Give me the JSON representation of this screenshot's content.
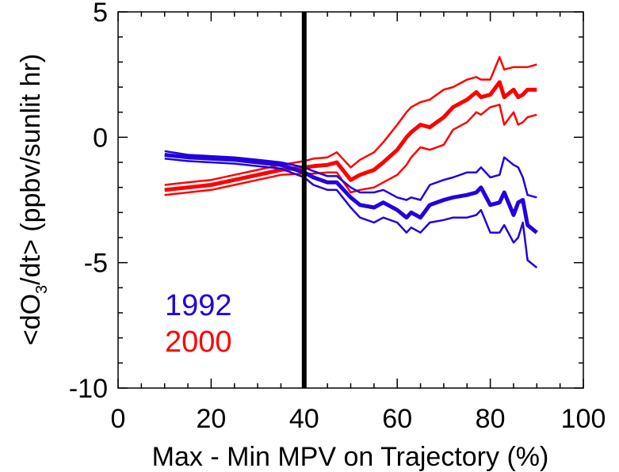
{
  "chart_data": {
    "type": "line",
    "xlabel": "Max - Min MPV on Trajectory (%)",
    "ylabel": {
      "pre": "<dO",
      "sub": "3",
      "post": "/dt> (ppbv/sunlit hr)"
    },
    "xlim": [
      0,
      100
    ],
    "ylim": [
      -10,
      5
    ],
    "x_ticks": [
      0,
      20,
      40,
      60,
      80,
      100
    ],
    "x_tick_labels": [
      "0",
      "20",
      "40",
      "60",
      "80",
      "100"
    ],
    "y_ticks": [
      -10,
      -5,
      0,
      5
    ],
    "y_tick_labels": [
      "-10",
      "-5",
      "0",
      "5"
    ],
    "grid": false,
    "vertical_marker_x": 40,
    "colors": {
      "series_1992": "#2200dd",
      "series_2000": "#ff0000",
      "marker": "#000000"
    },
    "series": [
      {
        "name": "1992",
        "x": [
          10,
          15,
          20,
          25,
          30,
          35,
          40,
          42,
          45,
          47,
          50,
          52,
          55,
          57,
          60,
          62,
          63,
          65,
          67,
          70,
          72,
          75,
          77,
          78,
          80,
          82,
          83,
          85,
          86,
          87,
          88,
          90
        ],
        "mean": [
          -0.7,
          -0.8,
          -0.85,
          -0.9,
          -1.0,
          -1.1,
          -1.4,
          -1.6,
          -1.8,
          -1.8,
          -2.4,
          -2.7,
          -2.8,
          -2.6,
          -2.9,
          -3.2,
          -3.0,
          -3.2,
          -2.7,
          -2.5,
          -2.4,
          -2.3,
          -2.2,
          -2.0,
          -2.7,
          -2.6,
          -2.2,
          -3.1,
          -2.6,
          -2.5,
          -3.5,
          -3.8
        ],
        "upper": [
          -0.55,
          -0.7,
          -0.75,
          -0.8,
          -0.9,
          -1.0,
          -1.2,
          -1.35,
          -1.55,
          -1.55,
          -2.0,
          -2.2,
          -2.2,
          -2.1,
          -2.4,
          -2.5,
          -2.4,
          -2.5,
          -1.9,
          -1.7,
          -1.6,
          -1.4,
          -1.4,
          -1.2,
          -1.6,
          -1.5,
          -0.8,
          -1.1,
          -1.2,
          -1.6,
          -2.3,
          -2.4
        ],
        "lower": [
          -0.85,
          -0.95,
          -1.0,
          -1.05,
          -1.15,
          -1.25,
          -1.6,
          -1.9,
          -2.1,
          -2.1,
          -2.8,
          -3.2,
          -3.4,
          -3.2,
          -3.4,
          -3.8,
          -3.6,
          -3.8,
          -3.4,
          -3.3,
          -3.2,
          -3.2,
          -3.1,
          -2.9,
          -3.8,
          -3.8,
          -3.5,
          -4.2,
          -4.0,
          -3.4,
          -4.9,
          -5.2
        ]
      },
      {
        "name": "2000",
        "x": [
          10,
          15,
          20,
          25,
          30,
          35,
          40,
          42,
          45,
          47,
          50,
          52,
          55,
          57,
          60,
          62,
          63,
          65,
          67,
          70,
          72,
          75,
          77,
          78,
          80,
          82,
          83,
          85,
          86,
          87,
          88,
          90
        ],
        "mean": [
          -2.1,
          -2.0,
          -1.9,
          -1.7,
          -1.5,
          -1.3,
          -1.2,
          -1.15,
          -1.1,
          -1.0,
          -1.7,
          -1.5,
          -1.3,
          -1.0,
          -0.5,
          0.0,
          0.2,
          0.5,
          0.4,
          0.8,
          1.2,
          1.5,
          1.8,
          1.6,
          1.7,
          2.2,
          1.6,
          1.9,
          1.6,
          1.7,
          1.9,
          1.9
        ],
        "upper": [
          -1.9,
          -1.8,
          -1.7,
          -1.5,
          -1.3,
          -1.1,
          -0.95,
          -0.85,
          -0.8,
          -0.6,
          -1.2,
          -0.9,
          -0.6,
          -0.2,
          0.5,
          1.0,
          1.2,
          1.4,
          1.5,
          1.9,
          2.0,
          2.3,
          2.4,
          2.3,
          2.3,
          3.2,
          2.7,
          2.8,
          2.8,
          2.8,
          2.8,
          2.9
        ],
        "lower": [
          -2.3,
          -2.2,
          -2.1,
          -1.9,
          -1.7,
          -1.5,
          -1.45,
          -1.45,
          -1.4,
          -1.4,
          -2.2,
          -2.1,
          -2.0,
          -1.8,
          -1.5,
          -1.1,
          -0.8,
          -0.4,
          -0.5,
          -0.3,
          0.3,
          0.6,
          1.0,
          0.9,
          1.2,
          1.3,
          0.5,
          1.0,
          0.5,
          0.6,
          0.8,
          0.9
        ]
      }
    ],
    "legend": [
      "1992",
      "2000"
    ]
  }
}
